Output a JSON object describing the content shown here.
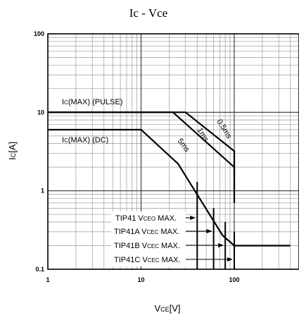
{
  "chart_data": {
    "type": "line",
    "title": {
      "main": "Ic",
      "sep": " - ",
      "tail": "Vce"
    },
    "xlabel": {
      "main": "V",
      "sub": "CE",
      "unit": "[V]"
    },
    "ylabel": {
      "main": "I",
      "sub": "C",
      "unit": "[A]"
    },
    "x_scale": "log",
    "y_scale": "log",
    "xlim": [
      1,
      400
    ],
    "ylim": [
      0.1,
      100
    ],
    "x_ticks": [
      {
        "value": 1,
        "label": "1"
      },
      {
        "value": 10,
        "label": "10"
      },
      {
        "value": 100,
        "label": "100"
      }
    ],
    "y_ticks": [
      {
        "value": 100,
        "label": "100"
      },
      {
        "value": 10,
        "label": "10"
      },
      {
        "value": 1,
        "label": "1"
      },
      {
        "value": 0.1,
        "label": "0.1"
      }
    ],
    "grid": true,
    "series": [
      {
        "name": "0.5ms",
        "points": [
          [
            1,
            10
          ],
          [
            30,
            10
          ],
          [
            100,
            3.2
          ],
          [
            100,
            1.5
          ]
        ]
      },
      {
        "name": "1ms",
        "points": [
          [
            1,
            10
          ],
          [
            22,
            10
          ],
          [
            100,
            2.0
          ],
          [
            100,
            0.7
          ]
        ]
      },
      {
        "name": "5ms",
        "points": [
          [
            1,
            6
          ],
          [
            10,
            6
          ],
          [
            25,
            2.2
          ],
          [
            75,
            0.27
          ],
          [
            100,
            0.2
          ],
          [
            400,
            0.2
          ]
        ]
      }
    ],
    "vce_limits": [
      {
        "x": 40,
        "y_top": 1.3
      },
      {
        "x": 60,
        "y_top": 0.6
      },
      {
        "x": 80,
        "y_top": 0.4
      },
      {
        "x": 100,
        "y_top": 0.3
      }
    ],
    "annotations": {
      "max_pulse": {
        "pre": "I",
        "sub": "C",
        "post": "(MAX) (PULSE)"
      },
      "max_dc": {
        "pre": "I",
        "sub": "C",
        "post": "(MAX) (DC)"
      },
      "curve_05ms": "0.5ms",
      "curve_1ms": "1ms",
      "curve_5ms": "5ms",
      "tip41": {
        "model": "TIP41 ",
        "v": "V",
        "sub": "CEO",
        "tail": " MAX."
      },
      "tip41a": {
        "model": "TIP41A ",
        "v": "V",
        "sub": "CEC",
        "tail": " MAX."
      },
      "tip41b": {
        "model": "TIP41B ",
        "v": "V",
        "sub": "CEC",
        "tail": " MAX."
      },
      "tip41c": {
        "model": "TIP41C ",
        "v": "V",
        "sub": "CEC",
        "tail": " MAX."
      }
    }
  }
}
